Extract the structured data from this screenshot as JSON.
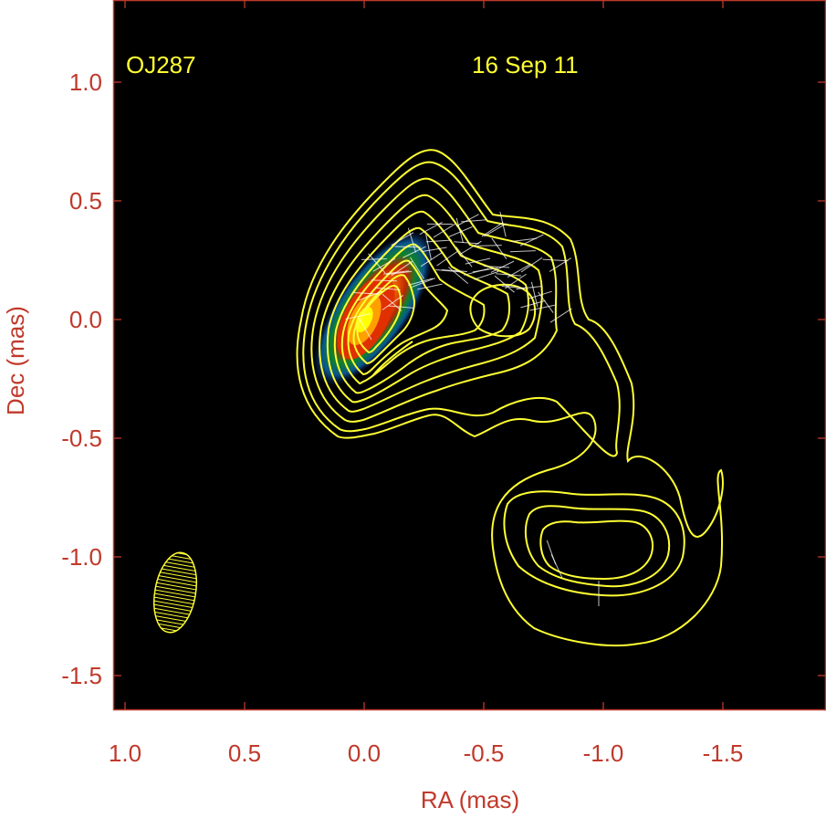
{
  "chart_data": {
    "type": "contour",
    "source_name": "OJ287",
    "epoch": "16 Sep 11",
    "xlabel": "RA (mas)",
    "ylabel": "Dec (mas)",
    "xlim": [
      1.0,
      -1.95
    ],
    "ylim": [
      -1.65,
      1.3
    ],
    "xticks": [
      1.0,
      0.5,
      0.0,
      -0.5,
      -1.0,
      -1.5
    ],
    "xtick_labels": [
      "1.0",
      "0.5",
      "0.0",
      "-0.5",
      "-1.0",
      "-1.5"
    ],
    "yticks": [
      1.0,
      0.5,
      0.0,
      -0.5,
      -1.0,
      -1.5
    ],
    "ytick_labels": [
      "1.0",
      "0.5",
      "0.0",
      "-0.5",
      "-1.0",
      "-1.5"
    ],
    "background": "#000000",
    "axis_color": "#c0392b",
    "contour_color": "#ffff33",
    "core": {
      "ra": 0.0,
      "dec": 0.0
    },
    "core_colormap": [
      "#ffff00",
      "#ff8000",
      "#cc2200",
      "#00aa33",
      "#1050c0"
    ],
    "beam": {
      "ra": 0.79,
      "dec": -1.15,
      "major": 0.34,
      "minor": 0.17,
      "pa_deg": 10
    },
    "polarization_vectors": "white ticks",
    "grid": false,
    "legend": "none"
  }
}
